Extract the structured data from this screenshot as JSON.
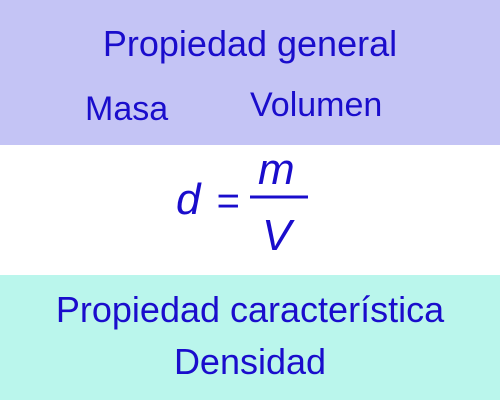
{
  "colors": {
    "top_band": "#c4c4f5",
    "middle_band": "#ffffff",
    "bottom_band": "#baf6ec",
    "text": "#1a0dcc"
  },
  "general": {
    "title": "Propiedad general",
    "left": "Masa",
    "right": "Volumen"
  },
  "formula": {
    "lhs": "d",
    "equals": "=",
    "numerator": "m",
    "denominator": "V"
  },
  "characteristic": {
    "title": "Propiedad característica",
    "value": "Densidad"
  }
}
